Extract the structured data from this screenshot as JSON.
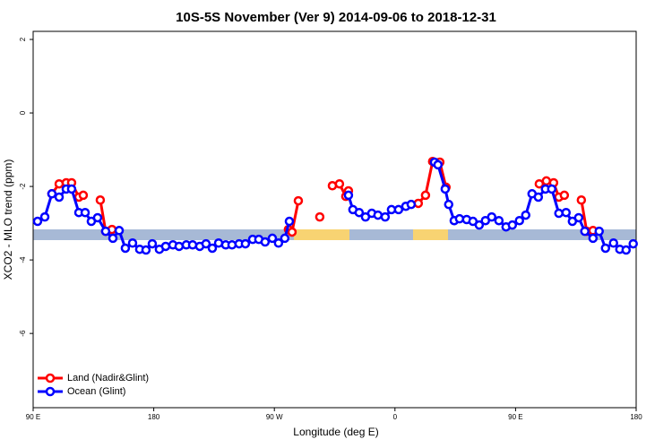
{
  "chart_data": {
    "type": "line",
    "title": "10S-5S November (Ver 9)   2014-09-06 to 2018-12-31",
    "x_label": "Longitude (deg E)",
    "y_label": "XCO2 - MLO trend (ppm)",
    "xlim": [
      90,
      540
    ],
    "xticks": [
      {
        "value": 90,
        "label": "90 E"
      },
      180,
      {
        "value": 270,
        "label": "90 W"
      },
      {
        "value": 360,
        "label": "0"
      },
      {
        "value": 450,
        "label": "90 E"
      },
      {
        "value": 540,
        "label": "180"
      }
    ],
    "ylim": [
      -8.02,
      2.22
    ],
    "yticks": [
      -6,
      -4,
      -2,
      0,
      2
    ],
    "legend": "bottomleft",
    "series": [
      {
        "name": "Land (Nadir&Glint)",
        "color": "#ff0000",
        "x": [
          104.0,
          109.4,
          114.7,
          118.7,
          124.1,
          127.4,
          null,
          140.1,
          144.1,
          148.8,
          null,
          280.5,
          283.2,
          287.9,
          null,
          303.9,
          null,
          313.3,
          318.6,
          323.3,
          325.3,
          null,
          377.4,
          382.8,
          388.1,
          393.5,
          398.1,
          null,
          467.7,
          473.0,
          478.4,
          482.3,
          486.4,
          null,
          499.1,
          503.1,
          507.8
        ],
        "values": [
          -2.2,
          -1.93,
          -1.9,
          -1.9,
          -2.29,
          -2.24,
          null,
          -2.37,
          -3.22,
          -3.17,
          null,
          -3.17,
          -3.24,
          -2.39,
          null,
          -2.83,
          null,
          -1.98,
          -1.93,
          -2.27,
          -2.12,
          null,
          -2.46,
          -2.24,
          -1.32,
          -1.34,
          -2.02,
          null,
          -1.93,
          -1.85,
          -1.9,
          -2.29,
          -2.24,
          null,
          -2.37,
          -3.22,
          -3.2
        ]
      },
      {
        "name": "Ocean (Glint)",
        "color": "#0000ff",
        "x": [
          93.3,
          98.7,
          104.0,
          109.4,
          114.7,
          118.7,
          124.1,
          128.8,
          133.4,
          138.1,
          144.1,
          149.5,
          154.2,
          158.8,
          164.2,
          169.5,
          174.2,
          178.9,
          184.2,
          188.9,
          194.3,
          198.9,
          204.3,
          209.0,
          214.3,
          219.0,
          223.7,
          228.4,
          233.7,
          238.4,
          243.7,
          248.4,
          253.8,
          258.4,
          263.1,
          268.5,
          273.1,
          277.8,
          281.2,
          null,
          325.3,
          328.6,
          333.3,
          338.0,
          342.7,
          347.3,
          352.7,
          357.4,
          362.7,
          368.1,
          372.1,
          null,
          389.5,
          392.1,
          397.5,
          400.1,
          404.2,
          408.2,
          413.5,
          418.2,
          422.9,
          427.5,
          432.2,
          437.6,
          442.9,
          447.6,
          452.9,
          457.6,
          462.3,
          467.0,
          472.3,
          477.0,
          482.3,
          487.7,
          492.4,
          497.1,
          501.7,
          507.8,
          512.4,
          517.1,
          523.1,
          527.8,
          532.5,
          537.8
        ],
        "values": [
          -2.95,
          -2.83,
          -2.2,
          -2.29,
          -2.07,
          -2.07,
          -2.71,
          -2.71,
          -2.95,
          -2.85,
          -3.22,
          -3.41,
          -3.2,
          -3.68,
          -3.54,
          -3.71,
          -3.73,
          -3.56,
          -3.71,
          -3.63,
          -3.59,
          -3.63,
          -3.59,
          -3.59,
          -3.63,
          -3.56,
          -3.68,
          -3.54,
          -3.59,
          -3.59,
          -3.56,
          -3.56,
          -3.44,
          -3.44,
          -3.51,
          -3.41,
          -3.54,
          -3.41,
          -2.95,
          null,
          -2.24,
          -2.63,
          -2.71,
          -2.83,
          -2.73,
          -2.78,
          -2.83,
          -2.63,
          -2.63,
          -2.54,
          -2.49,
          null,
          -1.34,
          -1.41,
          -2.07,
          -2.49,
          -2.93,
          -2.88,
          -2.9,
          -2.95,
          -3.05,
          -2.93,
          -2.83,
          -2.93,
          -3.1,
          -3.05,
          -2.93,
          -2.78,
          -2.2,
          -2.29,
          -2.07,
          -2.07,
          -2.73,
          -2.71,
          -2.95,
          -2.85,
          -3.22,
          -3.41,
          -3.22,
          -3.68,
          -3.54,
          -3.71,
          -3.73,
          -3.56
        ]
      }
    ]
  }
}
